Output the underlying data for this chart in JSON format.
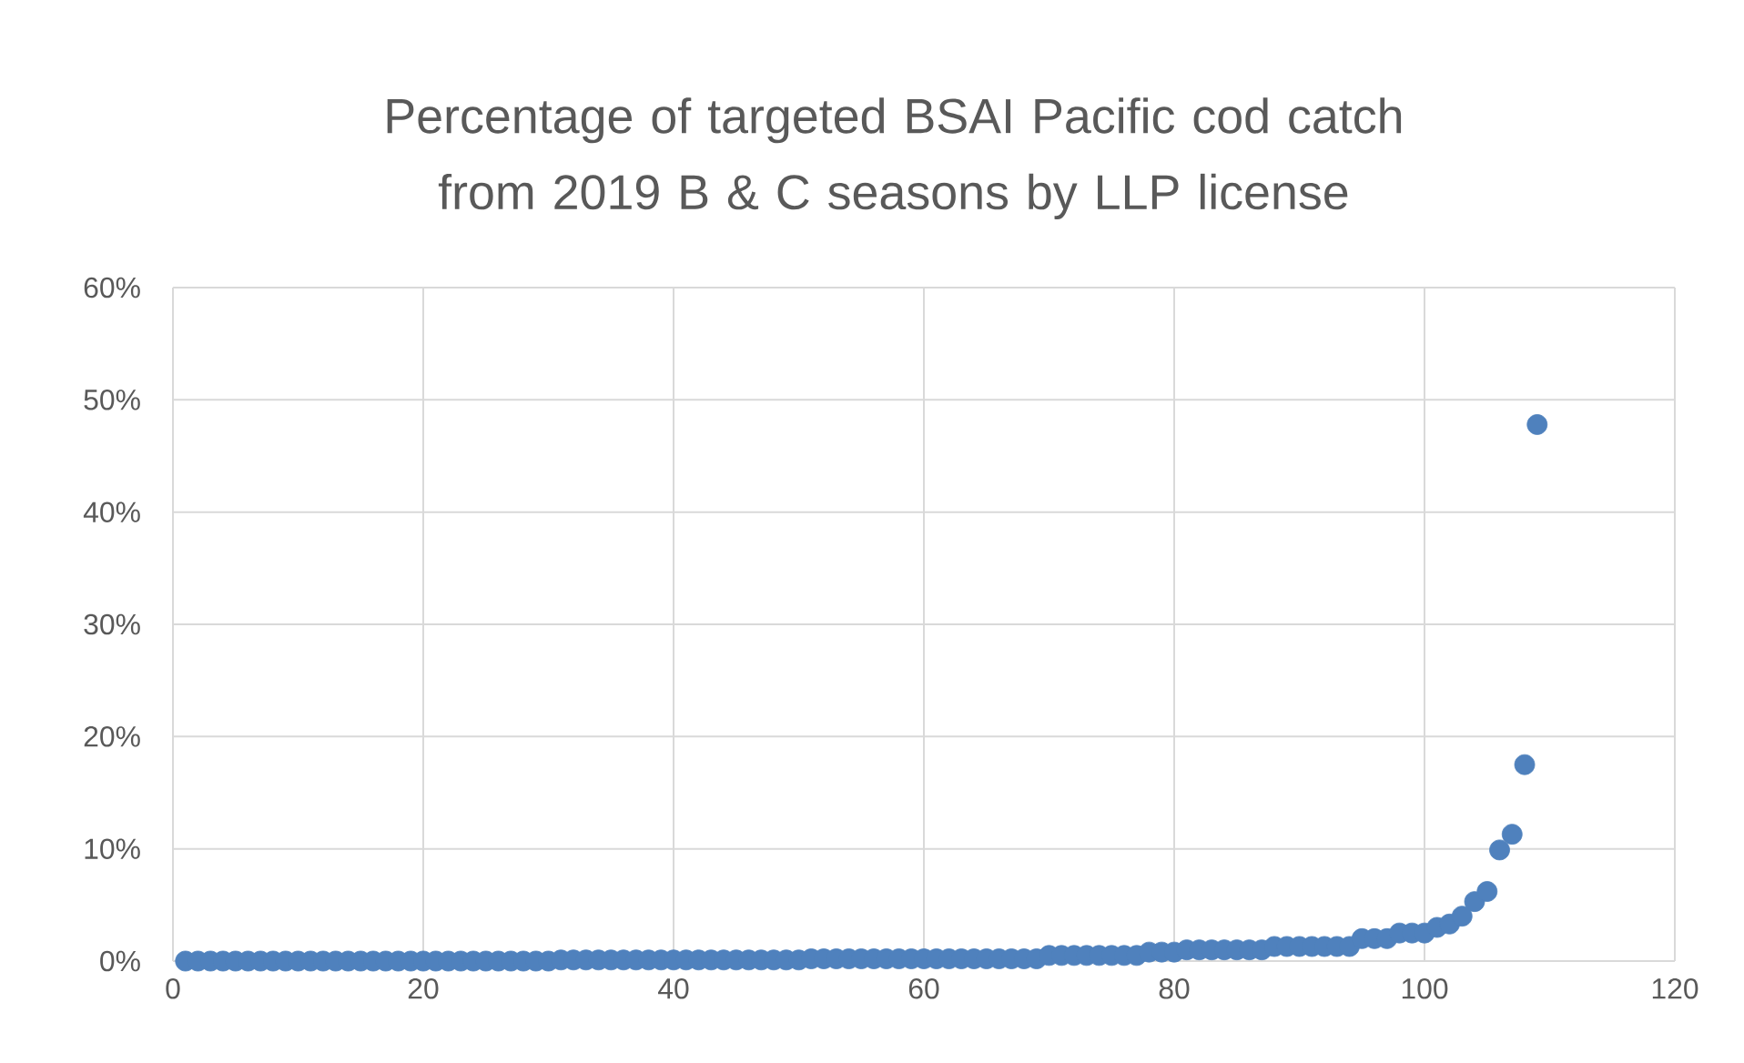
{
  "chart_data": {
    "type": "scatter",
    "title": "Percentage of targeted BSAI Pacific cod catch from 2019 B & C seasons by LLP license",
    "x": [
      1,
      2,
      3,
      4,
      5,
      6,
      7,
      8,
      9,
      10,
      11,
      12,
      13,
      14,
      15,
      16,
      17,
      18,
      19,
      20,
      21,
      22,
      23,
      24,
      25,
      26,
      27,
      28,
      29,
      30,
      31,
      32,
      33,
      34,
      35,
      36,
      37,
      38,
      39,
      40,
      41,
      42,
      43,
      44,
      45,
      46,
      47,
      48,
      49,
      50,
      51,
      52,
      53,
      54,
      55,
      56,
      57,
      58,
      59,
      60,
      61,
      62,
      63,
      64,
      65,
      66,
      67,
      68,
      69,
      70,
      71,
      72,
      73,
      74,
      75,
      76,
      77,
      78,
      79,
      80,
      81,
      82,
      83,
      84,
      85,
      86,
      87,
      88,
      89,
      90,
      91,
      92,
      93,
      94,
      95,
      96,
      97,
      98,
      99,
      100,
      101,
      102,
      103,
      104,
      105,
      106,
      107,
      108,
      109
    ],
    "values": [
      0,
      0,
      0,
      0,
      0,
      0,
      0,
      0,
      0,
      0,
      0,
      0,
      0,
      0,
      0,
      0,
      0,
      0,
      0,
      0,
      0,
      0,
      0,
      0,
      0,
      0,
      0,
      0,
      0,
      0,
      0.1,
      0.1,
      0.1,
      0.1,
      0.1,
      0.1,
      0.1,
      0.1,
      0.1,
      0.1,
      0.1,
      0.1,
      0.1,
      0.1,
      0.1,
      0.1,
      0.1,
      0.1,
      0.1,
      0.1,
      0.2,
      0.2,
      0.2,
      0.2,
      0.2,
      0.2,
      0.2,
      0.2,
      0.2,
      0.2,
      0.2,
      0.2,
      0.2,
      0.2,
      0.2,
      0.2,
      0.2,
      0.2,
      0.2,
      0.5,
      0.5,
      0.5,
      0.5,
      0.5,
      0.5,
      0.5,
      0.5,
      0.8,
      0.8,
      0.8,
      1.0,
      1.0,
      1.0,
      1.0,
      1.0,
      1.0,
      1.0,
      1.3,
      1.3,
      1.3,
      1.3,
      1.3,
      1.3,
      1.3,
      2.0,
      2.0,
      2.0,
      2.5,
      2.5,
      2.5,
      3.0,
      3.3,
      4.0,
      5.3,
      6.2,
      9.9,
      11.3,
      17.5,
      47.8
    ],
    "color": "#4f81bd",
    "marker": "circle",
    "xlim": [
      0,
      120
    ],
    "xticks": [
      0,
      20,
      40,
      60,
      80,
      100,
      120
    ],
    "ylim": [
      0,
      60
    ],
    "yticks": [
      {
        "value": 0,
        "label": "0%"
      },
      {
        "value": 10,
        "label": "10%"
      },
      {
        "value": 20,
        "label": "20%"
      },
      {
        "value": 30,
        "label": "30%"
      },
      {
        "value": 40,
        "label": "40%"
      },
      {
        "value": 50,
        "label": "50%"
      },
      {
        "value": 60,
        "label": "60%"
      }
    ],
    "grid": true
  }
}
